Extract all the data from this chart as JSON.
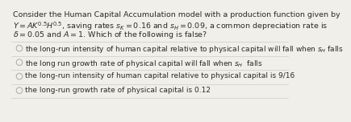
{
  "title_lines": [
    "Consider the Human Capital Accumulation model with a production function given by",
    "$Y = AK^{0.5}H^{0.5}$, saving rates $s_K = 0.16$ and $s_H = 0.09$, a common depreciation rate is",
    "$\\delta = 0.05$ and $A = 1$. Which of the following is false?"
  ],
  "options": [
    "the long-run intensity of human capital relative to physical capital will fall when $s_H$ falls",
    "the long run growth rate of physical capital will fall when $s_H$  falls",
    "the long-run intensity of human capital relative to physical capital is 9/16",
    "the long-run growth rate of physical capital is 0.12"
  ],
  "bg_color": "#f0efea",
  "text_color": "#2a2a2a",
  "circle_color": "#aaaaaa",
  "separator_color": "#cccccc",
  "title_fontsize": 6.8,
  "option_fontsize": 6.5
}
